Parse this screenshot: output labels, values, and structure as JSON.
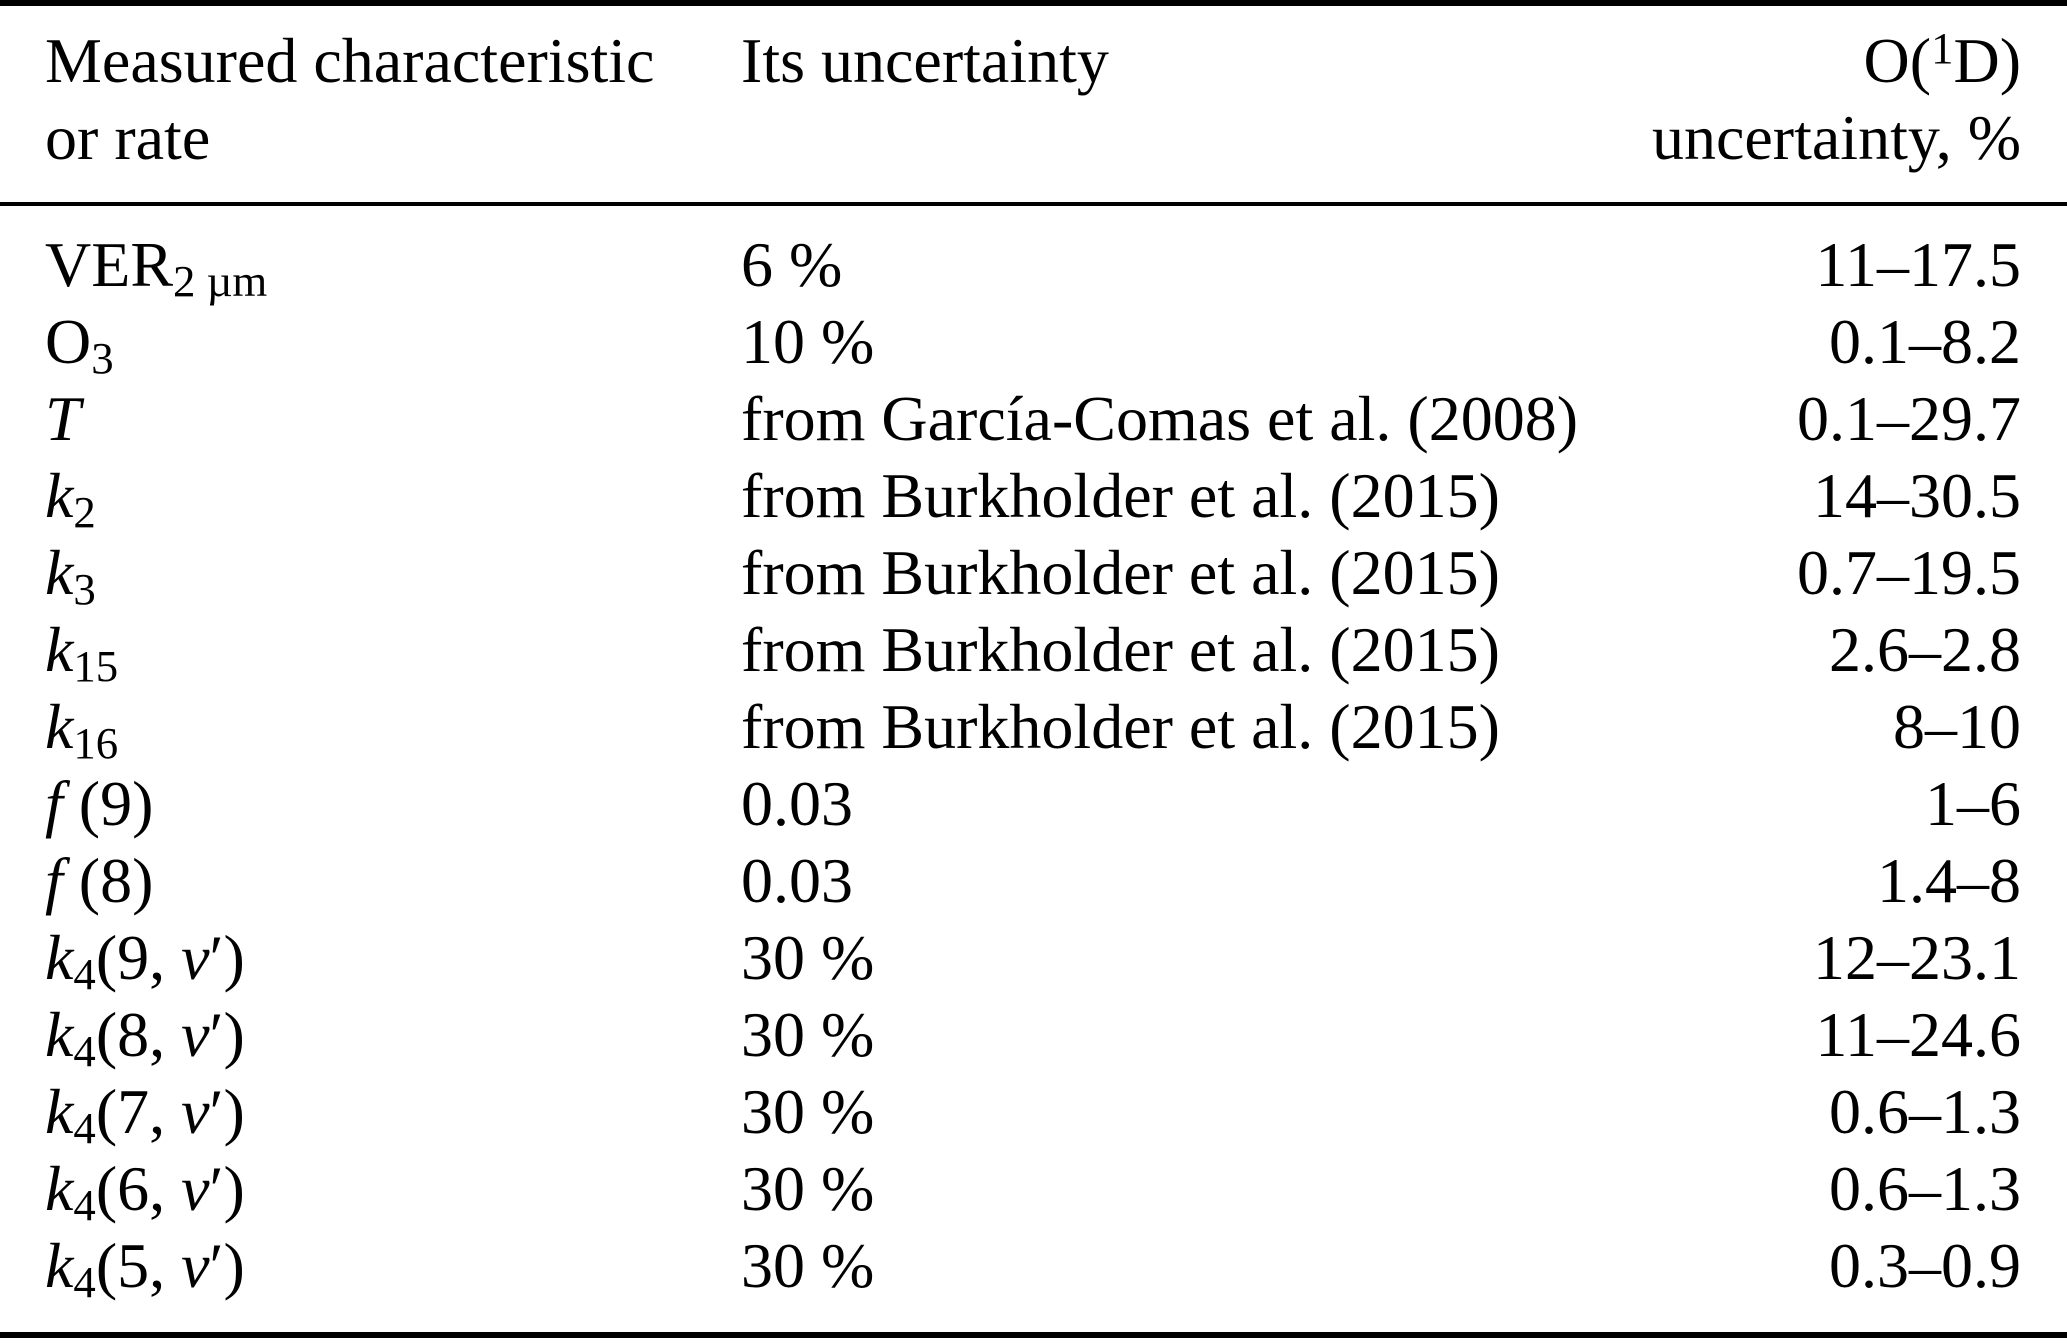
{
  "table": {
    "header": {
      "col1_line1": "Measured characteristic",
      "col1_line2": "or rate",
      "col2": "Its uncertainty",
      "col3_prefix": "O(",
      "col3_sup": "1",
      "col3_suffix": "D)",
      "col3_line2": "uncertainty, %"
    },
    "rows": [
      {
        "characteristic": [
          {
            "t": "VER"
          },
          {
            "t": "2 µm",
            "f": "sub"
          }
        ],
        "uncertainty": "6 %",
        "o1d_uncertainty": "11–17.5"
      },
      {
        "characteristic": [
          {
            "t": "O"
          },
          {
            "t": "3",
            "f": "sub"
          }
        ],
        "uncertainty": "10 %",
        "o1d_uncertainty": "0.1–8.2"
      },
      {
        "characteristic": [
          {
            "t": "T",
            "f": "i"
          }
        ],
        "uncertainty": "from García-Comas et al. (2008)",
        "o1d_uncertainty": "0.1–29.7"
      },
      {
        "characteristic": [
          {
            "t": "k",
            "f": "i"
          },
          {
            "t": "2",
            "f": "sub"
          }
        ],
        "uncertainty": "from Burkholder et al. (2015)",
        "o1d_uncertainty": "14–30.5"
      },
      {
        "characteristic": [
          {
            "t": "k",
            "f": "i"
          },
          {
            "t": "3",
            "f": "sub"
          }
        ],
        "uncertainty": "from Burkholder et al. (2015)",
        "o1d_uncertainty": "0.7–19.5"
      },
      {
        "characteristic": [
          {
            "t": "k",
            "f": "i"
          },
          {
            "t": "15",
            "f": "sub"
          }
        ],
        "uncertainty": "from Burkholder et al. (2015)",
        "o1d_uncertainty": "2.6–2.8"
      },
      {
        "characteristic": [
          {
            "t": "k",
            "f": "i"
          },
          {
            "t": "16",
            "f": "sub"
          }
        ],
        "uncertainty": "from Burkholder et al. (2015)",
        "o1d_uncertainty": "8–10"
      },
      {
        "characteristic": [
          {
            "t": "f",
            "f": "i"
          },
          {
            "t": " (9)"
          }
        ],
        "uncertainty": "0.03",
        "o1d_uncertainty": "1–6"
      },
      {
        "characteristic": [
          {
            "t": "f",
            "f": "i"
          },
          {
            "t": " (8)"
          }
        ],
        "uncertainty": "0.03",
        "o1d_uncertainty": "1.4–8"
      },
      {
        "characteristic": [
          {
            "t": "k",
            "f": "i"
          },
          {
            "t": "4",
            "f": "sub"
          },
          {
            "t": "(9, "
          },
          {
            "t": "ν",
            "f": "i"
          },
          {
            "t": "′)"
          }
        ],
        "uncertainty": "30 %",
        "o1d_uncertainty": "12–23.1"
      },
      {
        "characteristic": [
          {
            "t": "k",
            "f": "i"
          },
          {
            "t": "4",
            "f": "sub"
          },
          {
            "t": "(8, "
          },
          {
            "t": "ν",
            "f": "i"
          },
          {
            "t": "′)"
          }
        ],
        "uncertainty": "30 %",
        "o1d_uncertainty": "11–24.6"
      },
      {
        "characteristic": [
          {
            "t": "k",
            "f": "i"
          },
          {
            "t": "4",
            "f": "sub"
          },
          {
            "t": "(7, "
          },
          {
            "t": "ν",
            "f": "i"
          },
          {
            "t": "′)"
          }
        ],
        "uncertainty": "30 %",
        "o1d_uncertainty": "0.6–1.3"
      },
      {
        "characteristic": [
          {
            "t": "k",
            "f": "i"
          },
          {
            "t": "4",
            "f": "sub"
          },
          {
            "t": "(6, "
          },
          {
            "t": "ν",
            "f": "i"
          },
          {
            "t": "′)"
          }
        ],
        "uncertainty": "30 %",
        "o1d_uncertainty": "0.6–1.3"
      },
      {
        "characteristic": [
          {
            "t": "k",
            "f": "i"
          },
          {
            "t": "4",
            "f": "sub"
          },
          {
            "t": "(5, "
          },
          {
            "t": "ν",
            "f": "i"
          },
          {
            "t": "′)"
          }
        ],
        "uncertainty": "30 %",
        "o1d_uncertainty": "0.3–0.9"
      }
    ]
  }
}
